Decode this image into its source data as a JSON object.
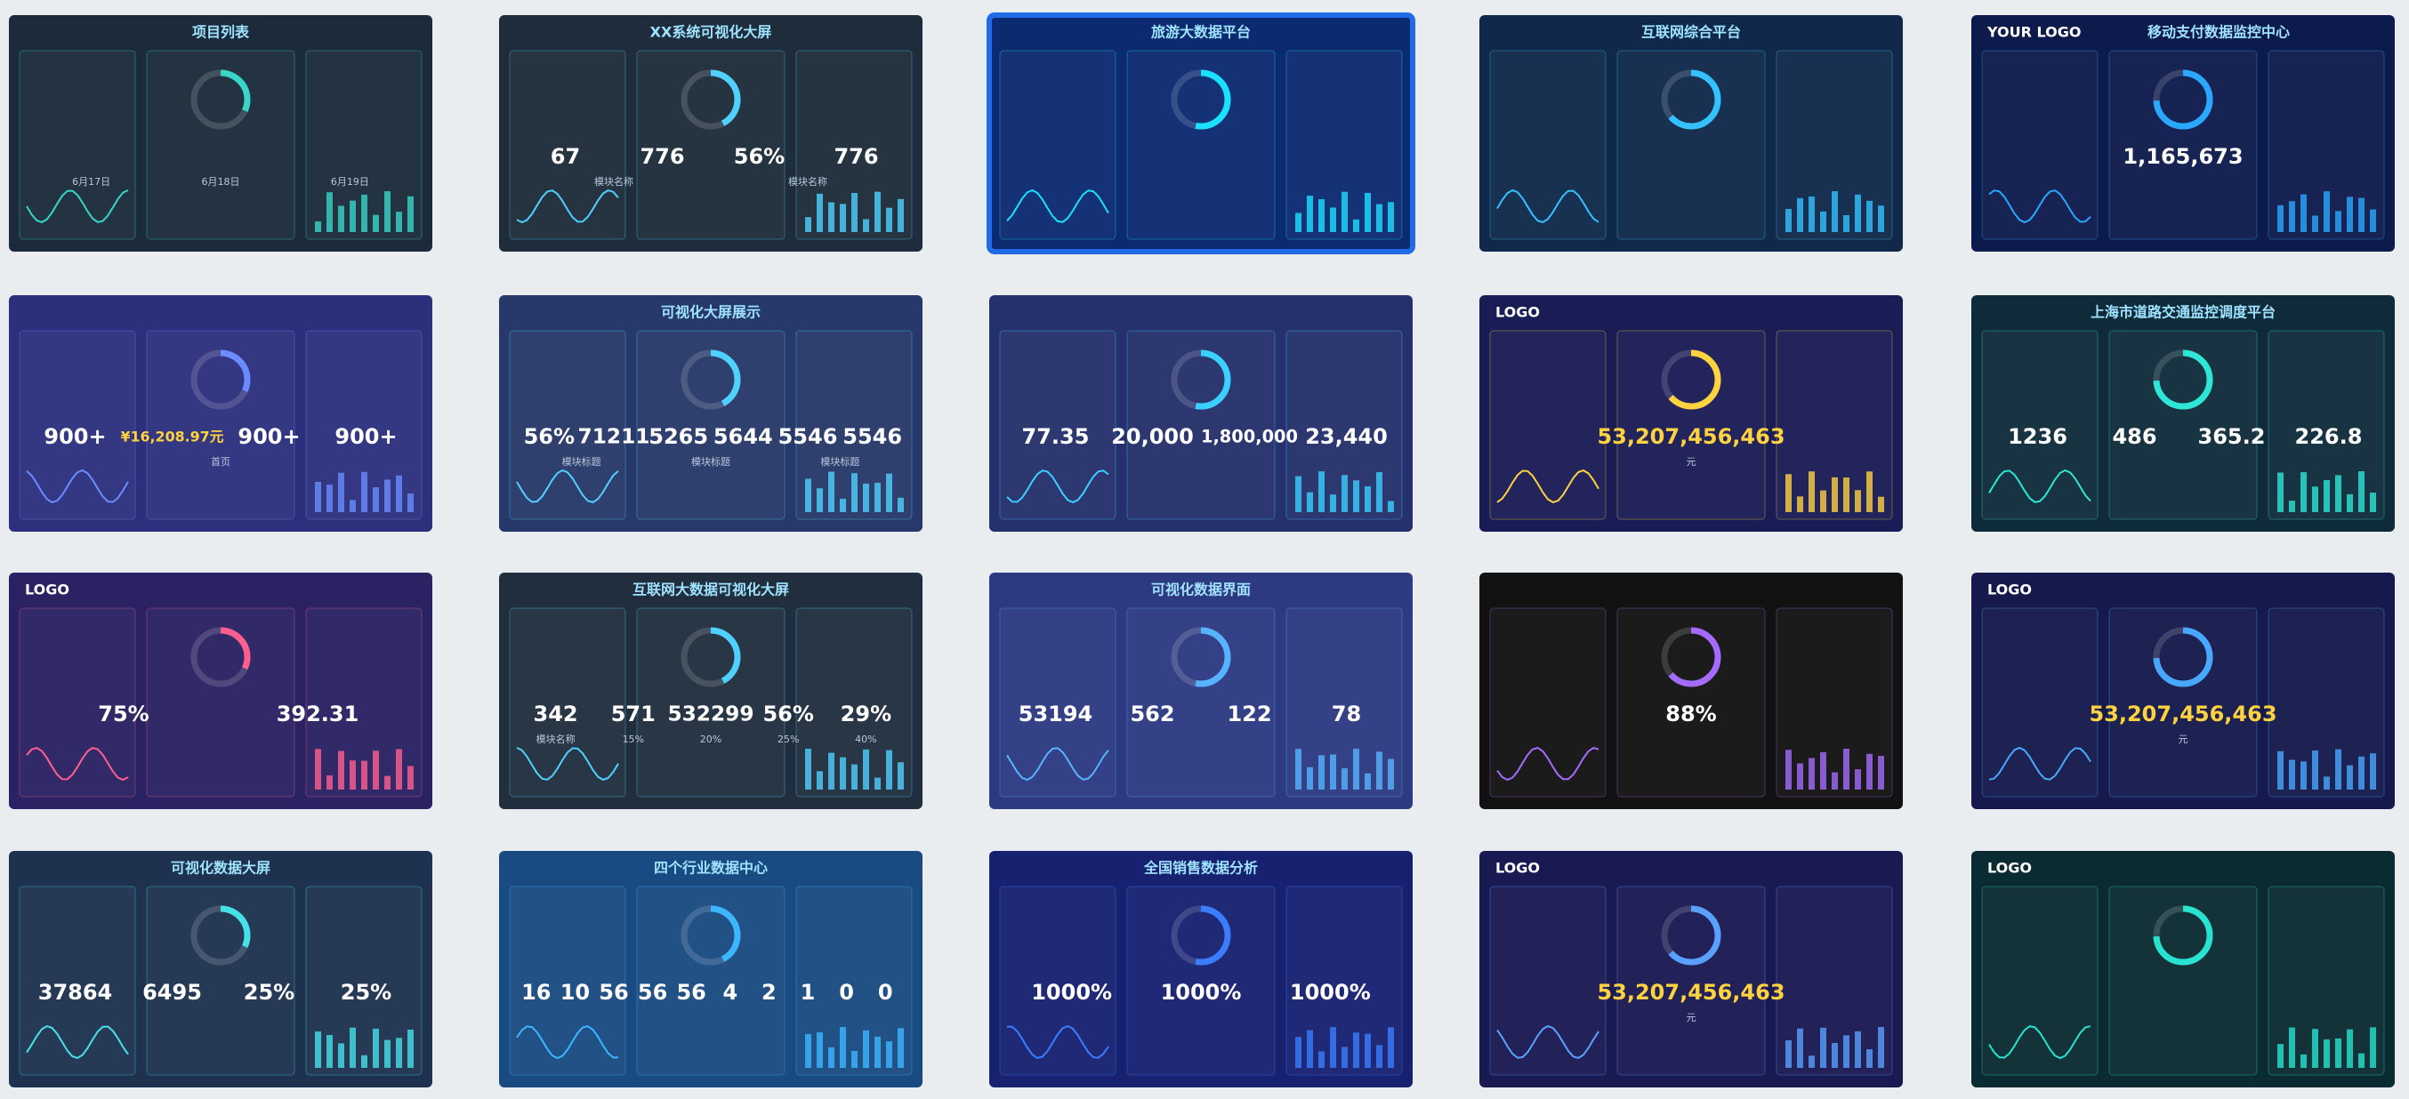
{
  "tiles": [
    {
      "title": "项目列表",
      "labels": [
        "6月17日",
        "6月18日",
        "6月19日"
      ]
    },
    {
      "title": "XX系统可视化大屏",
      "figures": [
        "67",
        "776",
        "56%",
        "776"
      ],
      "labels": [
        "模块名称",
        "模块名称"
      ]
    },
    {
      "title": "旅游大数据平台"
    },
    {
      "title": "互联网综合平台"
    },
    {
      "title": "移动支付数据监控中心",
      "logo": "YOUR LOGO",
      "figures": [
        "1,165,673"
      ]
    },
    {
      "figures": [
        "900+",
        "¥16,208.97元",
        "900+",
        "900+"
      ],
      "labels": [
        "首页"
      ]
    },
    {
      "title": "可视化大屏展示",
      "figures": [
        "56%",
        "71211",
        "5265",
        "5644",
        "5546",
        "5546"
      ],
      "labels": [
        "模块标题",
        "模块标题",
        "模块标题"
      ]
    },
    {
      "figures": [
        "77.35",
        "20,000",
        "1,800,000",
        "23,440"
      ]
    },
    {
      "logo": "LOGO",
      "figures": [
        "53,207,456,463"
      ],
      "labels": [
        "元"
      ]
    },
    {
      "title": "上海市道路交通监控调度平台",
      "figures": [
        "1236",
        "486",
        "365.2",
        "226.8"
      ]
    },
    {
      "logo": "LOGO",
      "figures": [
        "75%",
        "392.31"
      ]
    },
    {
      "title": "互联网大数据可视化大屏",
      "figures": [
        "342",
        "571",
        "532299",
        "56%",
        "29%"
      ],
      "labels": [
        "模块名称",
        "15%",
        "20%",
        "25%",
        "40%"
      ]
    },
    {
      "title": "可视化数据界面",
      "figures": [
        "53194",
        "562",
        "122",
        "78"
      ]
    },
    {
      "figures": [
        "88%"
      ]
    },
    {
      "logo": "LOGO",
      "figures": [
        "53,207,456,463"
      ],
      "labels": [
        "元"
      ]
    },
    {
      "title": "可视化数据大屏",
      "figures": [
        "37864",
        "6495",
        "25%",
        "25%"
      ]
    },
    {
      "title": "四个行业数据中心",
      "figures": [
        "16",
        "10",
        "56",
        "56",
        "56",
        "4",
        "2",
        "1",
        "0",
        "0"
      ]
    },
    {
      "title": "全国销售数据分析",
      "figures": [
        "1000%",
        "1000%",
        "1000%"
      ]
    },
    {
      "logo": "LOGO",
      "figures": [
        "53,207,456,463"
      ],
      "labels": [
        "元"
      ]
    },
    {
      "logo": "LOGO"
    }
  ]
}
